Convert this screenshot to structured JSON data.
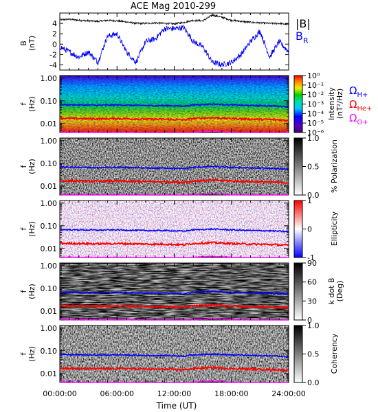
{
  "title": "ACE Mag 2010-299",
  "xlabel": "Time (UT)",
  "x_ticks": [
    "00:00:00",
    "06:00:00",
    "12:00:00",
    "18:00:00",
    "24:00:00"
  ],
  "colors": {
    "b_total": "#000000",
    "b_r": "#0000ff",
    "omega_h": "#0000ff",
    "omega_he": "#ff0000",
    "omega_o": "#ff00ff"
  },
  "chart_data": [
    {
      "type": "line",
      "panel": "magnetic-field",
      "ylabel": [
        "B",
        "(nT)"
      ],
      "ylim": [
        -5,
        6
      ],
      "y_ticks": [
        "4",
        "2",
        "0",
        "-2",
        "-4"
      ],
      "xlim": [
        0,
        24
      ],
      "legend": {
        "b_total": "|B|",
        "b_r_main": "B",
        "b_r_sub": "R"
      },
      "series": [
        {
          "name": "|B|",
          "x": [
            0,
            1,
            2,
            3,
            4,
            5,
            6,
            7,
            8,
            9,
            10,
            11,
            12,
            13,
            14,
            15,
            16,
            17,
            18,
            19,
            20,
            21,
            22,
            23,
            24
          ],
          "values": [
            4.7,
            4.8,
            4.6,
            4.5,
            4.4,
            4.6,
            4.5,
            4.3,
            4.0,
            4.0,
            4.1,
            4.0,
            3.9,
            4.2,
            4.6,
            4.5,
            5.6,
            5.2,
            4.6,
            4.4,
            4.2,
            4.1,
            4.0,
            4.0,
            3.8
          ]
        },
        {
          "name": "B",
          "x": [
            0,
            1,
            2,
            3,
            4,
            5,
            6,
            7,
            8,
            9,
            10,
            11,
            12,
            13,
            14,
            15,
            16,
            17,
            18,
            19,
            20,
            21,
            22,
            23,
            24
          ],
          "values": [
            -0.5,
            -1.5,
            -2.5,
            -1.5,
            -3.5,
            1.5,
            2.0,
            -1.5,
            -3.5,
            0.5,
            1.0,
            3.0,
            3.0,
            3.2,
            0.5,
            -0.5,
            -3.5,
            -4.0,
            -3.5,
            -2.0,
            0.5,
            2.5,
            -2.5,
            0.5,
            -1.5
          ]
        }
      ]
    },
    {
      "type": "heatmap",
      "panel": "intensity",
      "ylabel": [
        "f",
        "(Hz)"
      ],
      "y_ticks": [
        "1.00",
        "0.10",
        "0.01"
      ],
      "colorbar_label": [
        "Intensity",
        "(nT²/Hz)"
      ],
      "colorbar_ticks": [
        "10⁰",
        "10⁻¹",
        "10⁻²",
        "10⁻³",
        "10⁻⁴",
        "10⁻⁵",
        "10⁻⁶"
      ]
    },
    {
      "type": "heatmap",
      "panel": "polarization",
      "ylabel": [
        "f",
        "(Hz)"
      ],
      "y_ticks": [
        "1.00",
        "0.10",
        "0.01"
      ],
      "colorbar_label": [
        "% Polarization"
      ],
      "colorbar_ticks": [
        "1.0",
        "0.5",
        "0.0"
      ]
    },
    {
      "type": "heatmap",
      "panel": "ellipticity",
      "ylabel": [
        "f",
        "(Hz)"
      ],
      "y_ticks": [
        "1.00",
        "0.10",
        "0.01"
      ],
      "colorbar_label": [
        "Ellipticity"
      ],
      "colorbar_ticks": [
        "1",
        "0",
        "-1"
      ]
    },
    {
      "type": "heatmap",
      "panel": "kdotb",
      "ylabel": [
        "f",
        "(Hz)"
      ],
      "y_ticks": [
        "1.00",
        "0.10",
        "0.01"
      ],
      "colorbar_label": [
        "k dot B",
        "(Deg)"
      ],
      "colorbar_ticks": [
        "90",
        "60",
        "30",
        "0"
      ]
    },
    {
      "type": "heatmap",
      "panel": "coherency",
      "ylabel": [
        "f",
        "(Hz)"
      ],
      "y_ticks": [
        "1.00",
        "0.10",
        "0.01"
      ],
      "colorbar_label": [
        "Coherency"
      ],
      "colorbar_ticks": [
        "1.0",
        "0.5",
        "0.0"
      ]
    }
  ],
  "gyrofrequencies": {
    "legend": [
      {
        "main": "Ω",
        "sub": "H+"
      },
      {
        "main": "Ω",
        "sub": "He+"
      },
      {
        "main": "Ω",
        "sub": "O+"
      }
    ],
    "x": [
      0,
      2,
      4,
      6,
      8,
      10,
      11,
      12,
      13,
      14,
      16,
      18,
      20,
      22,
      24
    ],
    "omega_h": [
      0.068,
      0.066,
      0.064,
      0.066,
      0.063,
      0.061,
      0.062,
      0.06,
      0.058,
      0.066,
      0.072,
      0.066,
      0.062,
      0.06,
      0.055
    ],
    "omega_he": [
      0.017,
      0.0165,
      0.016,
      0.0165,
      0.016,
      0.0153,
      0.0155,
      0.015,
      0.0145,
      0.0165,
      0.018,
      0.0165,
      0.0155,
      0.015,
      0.0138
    ],
    "omega_o": [
      0.0042,
      0.0041,
      0.004,
      0.0041,
      0.004,
      0.0038,
      0.0039,
      0.0038,
      0.0036,
      0.0041,
      0.0045,
      0.0041,
      0.0039,
      0.0038,
      0.0034
    ]
  }
}
